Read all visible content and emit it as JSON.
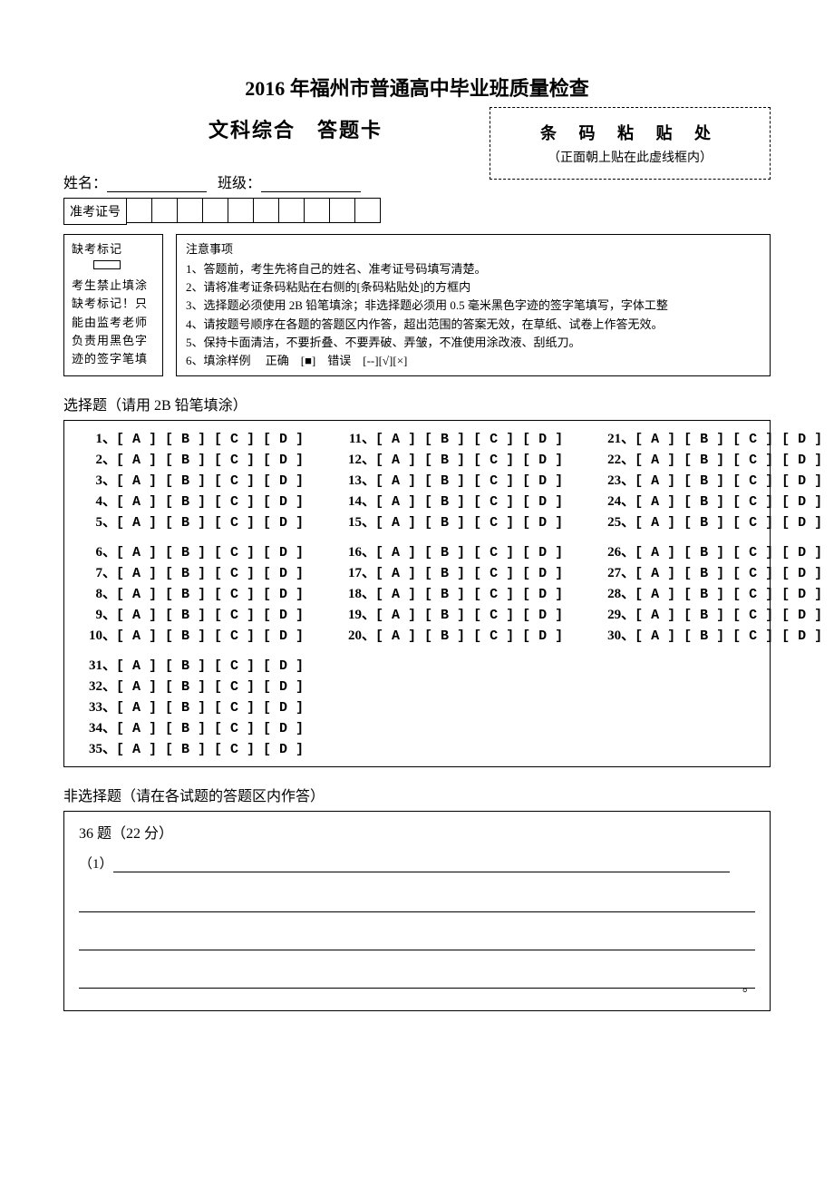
{
  "title": "2016 年福州市普通高中毕业班质量检查",
  "subtitle": "文科综合　答题卡",
  "barcode": {
    "title": "条 码 粘 贴 处",
    "hint": "（正面朝上贴在此虚线框内）"
  },
  "name_label": "姓名：",
  "class_label": "班级：",
  "ticket_label": "准考证号",
  "ticket_cells": 10,
  "absent": {
    "label": "缺考标记",
    "text": "考生禁止填涂缺考标记！只能由监考老师负责用黑色字迹的签字笔填"
  },
  "notice": {
    "title": "注意事项",
    "items": [
      "1、答题前，考生先将自己的姓名、准考证号码填写清楚。",
      "2、请将准考证条码粘贴在右侧的[条码粘贴处]的方框内",
      "3、选择题必须使用 2B 铅笔填涂；非选择题必须用 0.5 毫米黑色字迹的签字笔填写，字体工整",
      "4、请按题号顺序在各题的答题区内作答，超出范围的答案无效，在草纸、试卷上作答无效。",
      "5、保持卡面清洁，不要折叠、不要弄破、弄皱，不准使用涂改液、刮纸刀。",
      "6、填涂样例　 正确　[■]　错误　[--][√][×]"
    ]
  },
  "mc_section_title": "选择题（请用 2B 铅笔填涂）",
  "mc_options": "[ A ] [ B ] [ C ] [ D ]",
  "frq_section_title": "非选择题（请在各试题的答题区内作答）",
  "frq": {
    "header": "36 题（22 分）",
    "sub": "（1）"
  }
}
